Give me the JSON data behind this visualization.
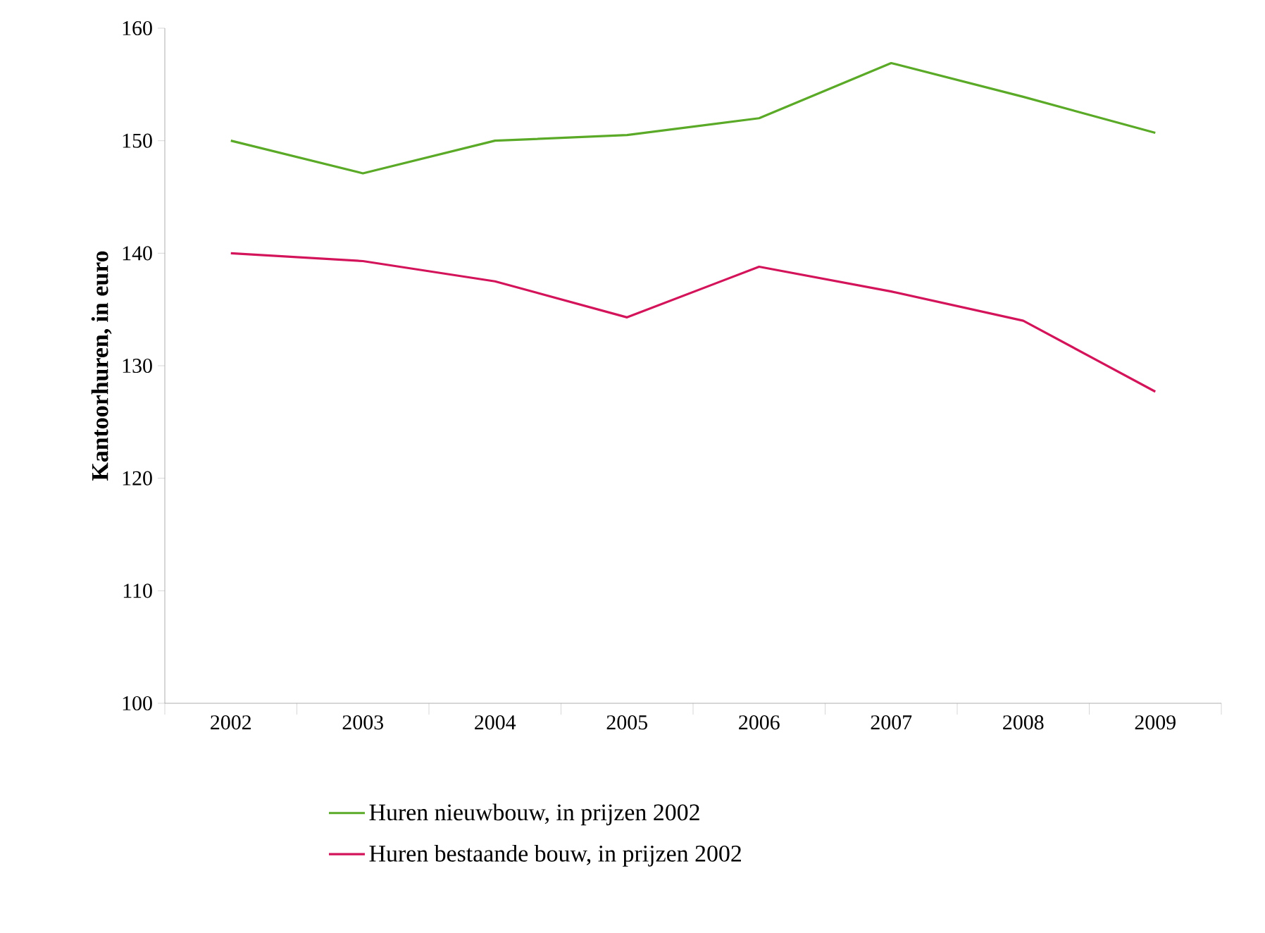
{
  "chart_data": {
    "type": "line",
    "ylabel": "Kantoorhuren, in euro",
    "categories": [
      "2002",
      "2003",
      "2004",
      "2005",
      "2006",
      "2007",
      "2008",
      "2009"
    ],
    "series": [
      {
        "name": "Huren nieuwbouw, in prijzen 2002",
        "color": "#5aaa28",
        "values": [
          150.0,
          147.1,
          150.0,
          150.5,
          152.0,
          156.9,
          153.9,
          150.7
        ]
      },
      {
        "name": "Huren bestaande bouw, in prijzen 2002",
        "color": "#d4145a",
        "values": [
          140.0,
          139.3,
          137.5,
          134.3,
          138.8,
          136.6,
          134.0,
          127.7
        ]
      }
    ],
    "ylim": [
      100,
      160
    ],
    "yticks": [
      100,
      110,
      120,
      130,
      140,
      150,
      160
    ],
    "grid": false,
    "legend": "bottom",
    "marker": "none",
    "line_style": "solid"
  }
}
